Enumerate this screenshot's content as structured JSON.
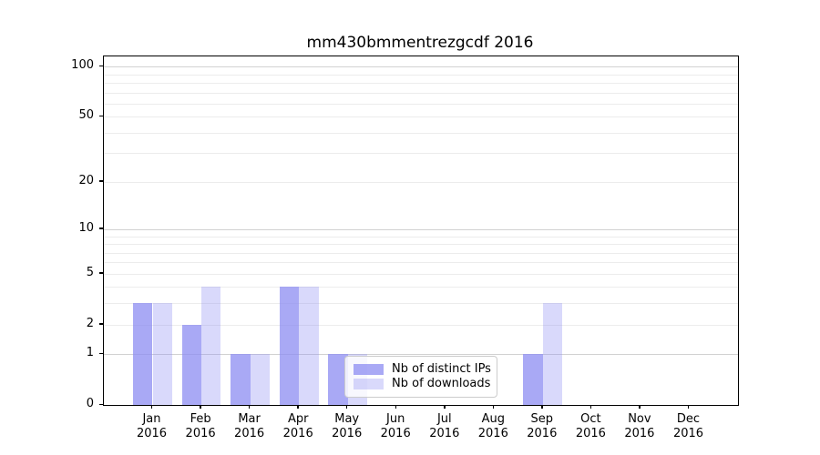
{
  "chart_data": {
    "type": "bar",
    "title": "mm430bmmentrezgcdf 2016",
    "categories": [
      "Jan",
      "Feb",
      "Mar",
      "Apr",
      "May",
      "Jun",
      "Jul",
      "Aug",
      "Sep",
      "Oct",
      "Nov",
      "Dec"
    ],
    "tick_year": "2016",
    "series": [
      {
        "name": "Nb of distinct IPs",
        "color": "rgba(140,140,242,0.75)",
        "values": [
          3,
          2,
          1,
          4,
          1,
          0,
          0,
          0,
          1,
          0,
          0,
          0
        ]
      },
      {
        "name": "Nb of downloads",
        "color": "rgba(140,140,242,0.33)",
        "values": [
          3,
          4,
          1,
          4,
          1,
          0,
          0,
          0,
          3,
          0,
          0,
          0
        ]
      }
    ],
    "yscale": "log1p",
    "ylim": [
      0,
      115
    ],
    "xlim": [
      -1,
      12
    ],
    "yticks": [
      0,
      1,
      2,
      5,
      10,
      20,
      50,
      100
    ],
    "grid_minor": [
      2,
      3,
      4,
      5,
      6,
      7,
      8,
      9,
      20,
      30,
      40,
      50,
      60,
      70,
      80,
      90
    ],
    "grid_major": [
      1,
      10,
      100
    ],
    "grid": "on",
    "legend_position": "lower center",
    "bar_width_units": 0.4
  }
}
